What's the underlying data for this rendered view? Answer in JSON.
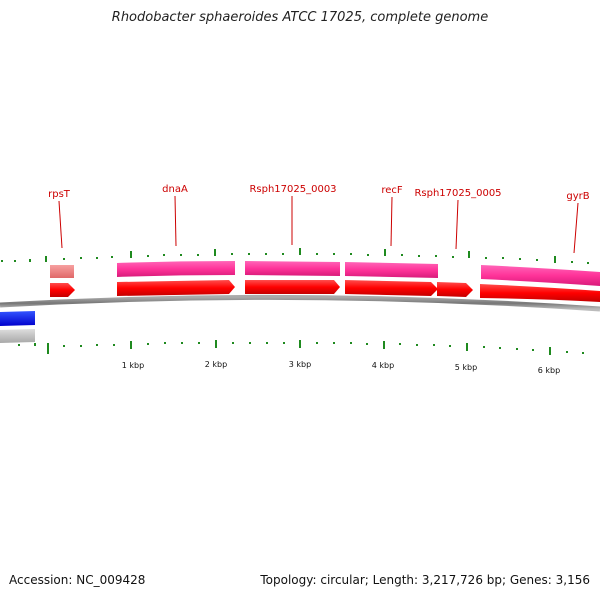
{
  "header": {
    "title": "Rhodobacter sphaeroides ATCC 17025, complete genome"
  },
  "footer": {
    "accession": "Accession: NC_009428",
    "summary": "Topology: circular; Length: 3,217,726 bp; Genes: 3,156"
  },
  "map": {
    "colors": {
      "backbone": "#808080",
      "tick": "#1f8a1f",
      "gene_label": "#cc0000",
      "cds": "#ff0000",
      "gene_forward": "#ff3399",
      "gene_forward_light": "#f08080",
      "gene_reverse_blue": "#0000ff",
      "gene_reverse_grey": "#bbbbbb"
    },
    "gene_labels": [
      "rpsT",
      "dnaA",
      "Rsph17025_0003",
      "recF",
      "Rsph17025_0005",
      "gyrB"
    ],
    "scale_labels": [
      "1 kbp",
      "2 kbp",
      "3 kbp",
      "4 kbp",
      "5 kbp",
      "6 kbp"
    ]
  }
}
